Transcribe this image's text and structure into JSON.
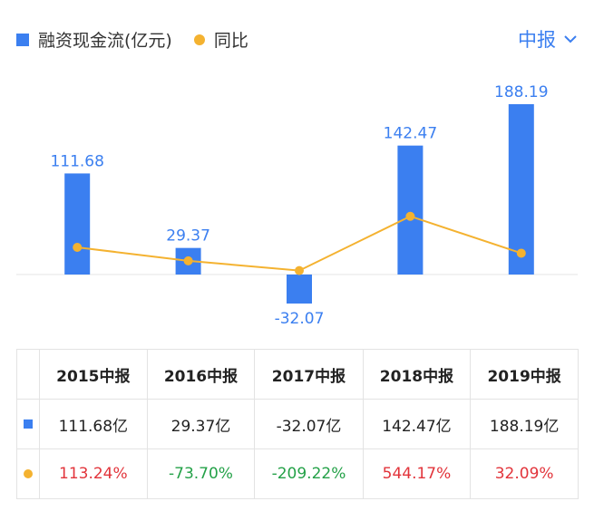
{
  "legend": {
    "series1": "融资现金流(亿元)",
    "series2": "同比"
  },
  "period_selector": "中报",
  "chart_data": {
    "type": "bar",
    "categories": [
      "2015中报",
      "2016中报",
      "2017中报",
      "2018中报",
      "2019中报"
    ],
    "series": [
      {
        "name": "融资现金流(亿元)",
        "type": "bar",
        "values": [
          111.68,
          29.37,
          -32.07,
          142.47,
          188.19
        ],
        "labels": [
          "111.68",
          "29.37",
          "-32.07",
          "142.47",
          "188.19"
        ]
      },
      {
        "name": "同比",
        "type": "line",
        "values": [
          113.24,
          -73.7,
          -209.22,
          544.17,
          32.09
        ]
      }
    ],
    "colors": {
      "bar": "#3b7ff0",
      "line": "#f4b230"
    }
  },
  "table": {
    "headers": [
      "2015中报",
      "2016中报",
      "2017中报",
      "2018中报",
      "2019中报"
    ],
    "values_row": [
      "111.68亿",
      "29.37亿",
      "-32.07亿",
      "142.47亿",
      "188.19亿"
    ],
    "yoy_row": [
      "113.24%",
      "-73.70%",
      "-209.22%",
      "544.17%",
      "32.09%"
    ],
    "yoy_colors": [
      "red",
      "green",
      "green",
      "red",
      "red"
    ]
  }
}
